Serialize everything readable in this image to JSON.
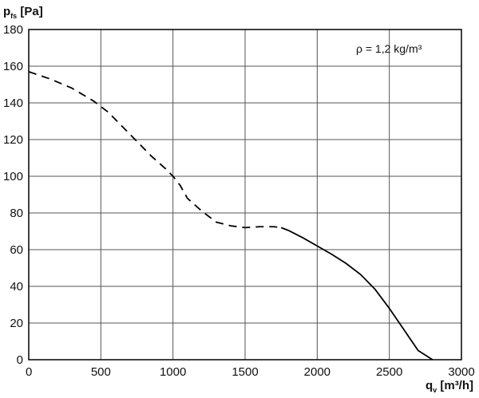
{
  "chart_data": {
    "type": "line",
    "title": "",
    "ylabel": {
      "main": "p",
      "sub": "fs",
      "unit": " [Pa]"
    },
    "xlabel": {
      "main": "q",
      "sub": "v",
      "unit": " [m³/h]"
    },
    "annotation": "ρ = 1,2 kg/m³",
    "xlim": [
      0,
      3000
    ],
    "ylim": [
      0,
      180
    ],
    "x_ticks": [
      0,
      500,
      1000,
      1500,
      2000,
      2500,
      3000
    ],
    "y_ticks": [
      0,
      20,
      40,
      60,
      80,
      100,
      120,
      140,
      160,
      180
    ],
    "x_tick_labels": [
      "0",
      "500",
      "1000",
      "1500",
      "2000",
      "2500",
      "3000"
    ],
    "y_tick_labels": [
      "0",
      "20",
      "40",
      "60",
      "80",
      "100",
      "120",
      "140",
      "160",
      "180"
    ],
    "grid": true,
    "series": [
      {
        "style": "dashed",
        "color": "#000000",
        "x": [
          0,
          150,
          300,
          450,
          550,
          650,
          750,
          850,
          950,
          1000,
          1050,
          1100,
          1200,
          1300,
          1400,
          1500,
          1600,
          1700,
          1750
        ],
        "y": [
          157,
          153,
          148,
          141,
          135,
          127,
          119,
          111,
          104,
          100,
          95,
          88,
          81,
          75,
          73,
          72,
          72.5,
          72.5,
          72
        ]
      },
      {
        "style": "solid",
        "color": "#000000",
        "x": [
          1750,
          1800,
          1900,
          2000,
          2100,
          2200,
          2300,
          2400,
          2500,
          2600,
          2700,
          2800
        ],
        "y": [
          72,
          70.5,
          66.5,
          62,
          57.5,
          52.5,
          46.5,
          38.5,
          28,
          16.5,
          5,
          0
        ]
      }
    ]
  }
}
